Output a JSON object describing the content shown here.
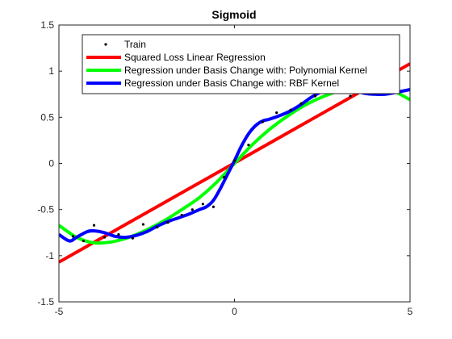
{
  "chart_data": {
    "type": "line",
    "title": "Sigmoid",
    "xlabel": "",
    "ylabel": "",
    "xlim": [
      -5,
      5
    ],
    "ylim": [
      -1.5,
      1.5
    ],
    "grid": false,
    "legend_position": "top-center",
    "xticks": [
      -5,
      0,
      5
    ],
    "xtick_labels": [
      "-5",
      "0",
      "5"
    ],
    "yticks": [
      -1.5,
      -1,
      -0.5,
      0,
      0.5,
      1,
      1.5
    ],
    "ytick_labels": [
      "-1.5",
      "-1",
      "-0.5",
      "0",
      "0.5",
      "1",
      "1.5"
    ],
    "series": [
      {
        "name": "Train",
        "kind": "scatter",
        "color": "#000000",
        "x": [
          -4.6,
          -4.3,
          -4.0,
          -3.7,
          -3.3,
          -2.9,
          -2.6,
          -2.2,
          -1.9,
          -1.5,
          -1.2,
          -0.9,
          -0.6,
          -0.3,
          0.0,
          0.4,
          0.8,
          1.2,
          1.6,
          1.9,
          2.3,
          2.6,
          3.0,
          3.3,
          3.6,
          4.0,
          4.3,
          4.6
        ],
        "y": [
          -0.79,
          -0.84,
          -0.67,
          -0.8,
          -0.77,
          -0.81,
          -0.66,
          -0.69,
          -0.64,
          -0.56,
          -0.5,
          -0.44,
          -0.47,
          -0.15,
          0.03,
          0.2,
          0.45,
          0.55,
          0.58,
          0.65,
          0.73,
          0.77,
          0.8,
          0.73,
          0.78,
          0.76,
          0.78,
          0.79
        ]
      },
      {
        "name": "Squared Loss Linear Regression",
        "kind": "line",
        "color": "#ff0000",
        "x": [
          -5,
          5
        ],
        "y": [
          -1.07,
          1.08
        ]
      },
      {
        "name": "Regression under Basis Change with: Polynomial Kernel",
        "kind": "line",
        "color": "#00ff00",
        "x": [
          -5,
          -4.5,
          -4.0,
          -3.5,
          -3.0,
          -2.5,
          -2.0,
          -1.5,
          -1.0,
          -0.5,
          0.0,
          0.5,
          1.0,
          1.5,
          2.0,
          2.5,
          3.0,
          3.5,
          4.0,
          4.5,
          5.0
        ],
        "y": [
          -0.67,
          -0.8,
          -0.86,
          -0.85,
          -0.8,
          -0.72,
          -0.62,
          -0.5,
          -0.37,
          -0.2,
          0.0,
          0.2,
          0.37,
          0.51,
          0.63,
          0.72,
          0.79,
          0.84,
          0.84,
          0.79,
          0.69
        ]
      },
      {
        "name": "Regression under Basis Change with: RBF Kernel",
        "kind": "line",
        "color": "#0000ff",
        "x": [
          -5,
          -4.7,
          -4.5,
          -4.2,
          -4.0,
          -3.7,
          -3.4,
          -3.1,
          -2.8,
          -2.5,
          -2.2,
          -1.9,
          -1.6,
          -1.3,
          -1.0,
          -0.8,
          -0.6,
          -0.4,
          -0.2,
          0.0,
          0.2,
          0.4,
          0.6,
          0.8,
          1.0,
          1.3,
          1.6,
          1.9,
          2.2,
          2.5,
          2.8,
          3.1,
          3.4,
          3.7,
          4.0,
          4.3,
          4.6,
          5.0
        ],
        "y": [
          -0.77,
          -0.84,
          -0.8,
          -0.74,
          -0.73,
          -0.75,
          -0.79,
          -0.8,
          -0.78,
          -0.74,
          -0.68,
          -0.63,
          -0.59,
          -0.55,
          -0.5,
          -0.47,
          -0.4,
          -0.27,
          -0.12,
          0.03,
          0.19,
          0.32,
          0.41,
          0.46,
          0.48,
          0.52,
          0.57,
          0.64,
          0.72,
          0.78,
          0.82,
          0.83,
          0.8,
          0.76,
          0.75,
          0.75,
          0.77,
          0.8
        ]
      }
    ]
  }
}
